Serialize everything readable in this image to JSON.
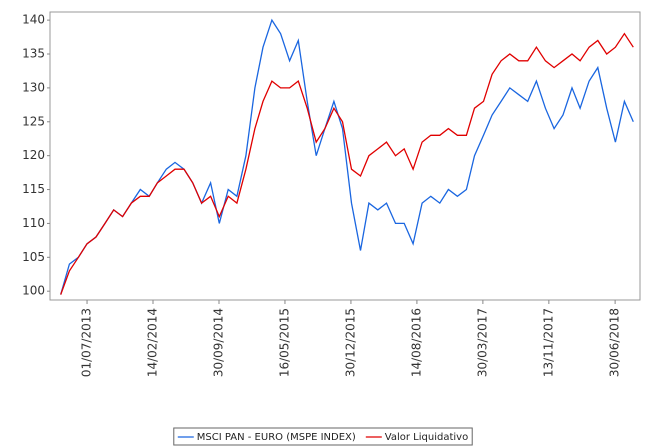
{
  "chart_data": {
    "type": "line",
    "x": [
      "2013-04-01",
      "2013-05-01",
      "2013-06-01",
      "2013-07-01",
      "2013-08-01",
      "2013-09-01",
      "2013-10-01",
      "2013-11-01",
      "2013-12-01",
      "2014-01-01",
      "2014-02-01",
      "2014-03-01",
      "2014-04-01",
      "2014-05-01",
      "2014-06-01",
      "2014-07-01",
      "2014-08-01",
      "2014-09-01",
      "2014-10-01",
      "2014-11-01",
      "2014-12-01",
      "2015-01-01",
      "2015-02-01",
      "2015-03-01",
      "2015-04-01",
      "2015-05-01",
      "2015-06-01",
      "2015-07-01",
      "2015-08-01",
      "2015-09-01",
      "2015-10-01",
      "2015-11-01",
      "2015-12-01",
      "2016-01-01",
      "2016-02-01",
      "2016-03-01",
      "2016-04-01",
      "2016-05-01",
      "2016-06-01",
      "2016-07-01",
      "2016-08-01",
      "2016-09-01",
      "2016-10-01",
      "2016-11-01",
      "2016-12-01",
      "2017-01-01",
      "2017-02-01",
      "2017-03-01",
      "2017-04-01",
      "2017-05-01",
      "2017-06-01",
      "2017-07-01",
      "2017-08-01",
      "2017-09-01",
      "2017-10-01",
      "2017-11-01",
      "2017-12-01",
      "2018-01-01",
      "2018-02-01",
      "2018-03-01",
      "2018-04-01",
      "2018-05-01",
      "2018-06-01",
      "2018-07-01",
      "2018-08-01",
      "2018-09-01"
    ],
    "series": [
      {
        "name": "MSCI PAN - EURO (MSPE INDEX)",
        "color": "#1a66e0",
        "values": [
          99.5,
          104,
          105,
          107,
          108,
          110,
          112,
          111,
          113,
          115,
          114,
          116,
          118,
          119,
          118,
          116,
          113,
          116,
          110,
          115,
          114,
          120,
          130,
          136,
          140,
          138,
          134,
          137,
          128,
          120,
          124,
          128,
          124,
          113,
          106,
          113,
          112,
          113,
          110,
          110,
          107,
          113,
          114,
          113,
          115,
          114,
          115,
          120,
          123,
          126,
          128,
          130,
          129,
          128,
          131,
          127,
          124,
          126,
          130,
          127,
          131,
          133,
          127,
          122,
          128,
          125
        ]
      },
      {
        "name": "Valor Liquidativo",
        "color": "#e00000",
        "values": [
          99.5,
          103,
          105,
          107,
          108,
          110,
          112,
          111,
          113,
          114,
          114,
          116,
          117,
          118,
          118,
          116,
          113,
          114,
          111,
          114,
          113,
          118,
          124,
          128,
          131,
          130,
          130,
          131,
          127,
          122,
          124,
          127,
          125,
          118,
          117,
          120,
          121,
          122,
          120,
          121,
          118,
          122,
          123,
          123,
          124,
          123,
          123,
          127,
          128,
          132,
          134,
          135,
          134,
          134,
          136,
          134,
          133,
          134,
          135,
          134,
          136,
          137,
          135,
          136,
          138,
          136
        ]
      }
    ],
    "xlim": [
      "2013-02-23",
      "2018-09-24"
    ],
    "xticks": [
      {
        "value": "2013-07-01",
        "label": "01/07/2013"
      },
      {
        "value": "2014-02-14",
        "label": "14/02/2014"
      },
      {
        "value": "2014-09-30",
        "label": "30/09/2014"
      },
      {
        "value": "2015-05-16",
        "label": "16/05/2015"
      },
      {
        "value": "2015-12-30",
        "label": "30/12/2015"
      },
      {
        "value": "2016-08-14",
        "label": "14/08/2016"
      },
      {
        "value": "2017-03-30",
        "label": "30/03/2017"
      },
      {
        "value": "2017-11-13",
        "label": "13/11/2017"
      },
      {
        "value": "2018-06-30",
        "label": "30/06/2018"
      }
    ],
    "ylim": [
      98.7,
      141.2
    ],
    "yticks": [
      100,
      105,
      110,
      115,
      120,
      125,
      130,
      135,
      140
    ],
    "grid": false,
    "legend": "bottom"
  }
}
